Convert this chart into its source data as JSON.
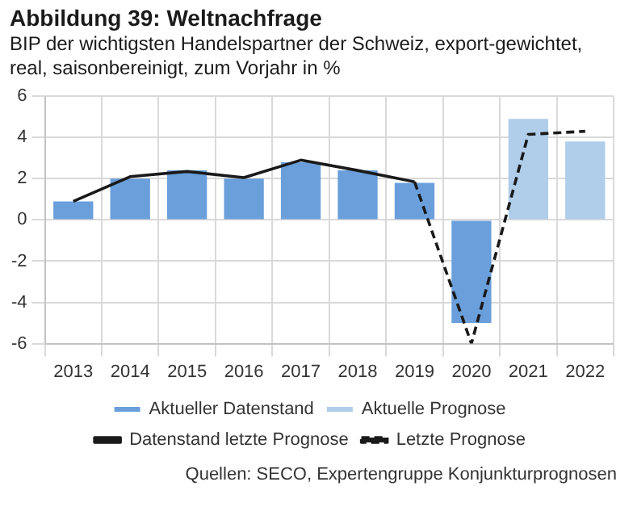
{
  "chart_data": {
    "type": "bar",
    "title": "Abbildung 39: Weltnachfrage",
    "subtitle": "BIP der wichtigsten Handelspartner der Schweiz, export-gewichtet, real, saisonbereinigt, zum Vorjahr in %",
    "categories": [
      "2013",
      "2014",
      "2015",
      "2016",
      "2017",
      "2018",
      "2019",
      "2020",
      "2021",
      "2022"
    ],
    "series": [
      {
        "name": "Aktueller Datenstand",
        "color": "#6a9fdb",
        "values": [
          0.9,
          2.0,
          2.4,
          2.0,
          2.8,
          2.4,
          1.8,
          -5.0,
          null,
          null
        ]
      },
      {
        "name": "Aktuelle Prognose",
        "color": "#b0cdea",
        "values": [
          null,
          null,
          null,
          null,
          null,
          null,
          null,
          null,
          4.9,
          3.8
        ]
      },
      {
        "name": "Datenstand letzte Prognose",
        "type": "line",
        "color": "#1a1a1a",
        "line_style": "solid",
        "values": [
          0.9,
          2.1,
          2.35,
          2.05,
          2.9,
          2.4,
          1.85,
          null,
          null,
          null
        ]
      },
      {
        "name": "Letzte Prognose",
        "type": "line",
        "color": "#1a1a1a",
        "line_style": "dashed",
        "values": [
          null,
          null,
          null,
          null,
          null,
          null,
          1.85,
          -6.0,
          4.15,
          4.3
        ]
      }
    ],
    "ylim": [
      -6,
      6
    ],
    "yticks": [
      -6,
      -4,
      -2,
      0,
      2,
      4,
      6
    ],
    "grid": true,
    "legend": "bottom",
    "marker": "none",
    "annotations": [
      "Quellen: SECO, Expertengruppe Konjunkturprognosen"
    ]
  }
}
